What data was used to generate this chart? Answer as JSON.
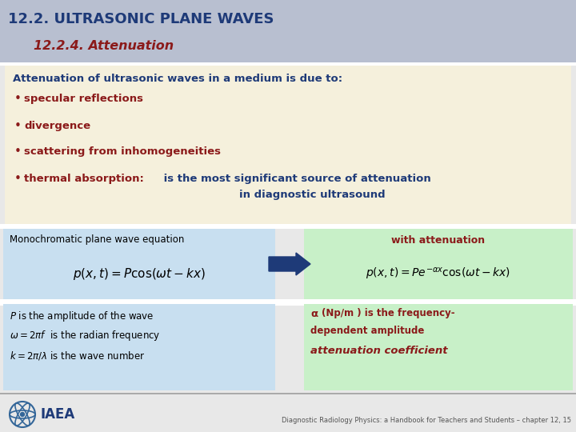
{
  "title1": "12.2. ULTRASONIC PLANE WAVES",
  "title1_color": "#1e3a78",
  "title2": "12.2.4. Attenuation",
  "title2_color": "#8b1a1a",
  "header_bg": "#b8bfd0",
  "bullet_box_bg": "#f5f0dc",
  "bullet_header": "Attenuation of ultrasonic waves in a medium is due to:",
  "bullet_header_color": "#1e3a78",
  "bullets_red": [
    "specular reflections",
    "divergence",
    "scattering from inhomogeneities",
    "thermal absorption:"
  ],
  "bullet4_blue": " is the most significant source of attenuation",
  "bullet4_blue2": "in diagnostic ultrasound",
  "bullet_color": "#8b1a1a",
  "bullet4_rest_color": "#1e3a78",
  "left_box_bg": "#c8dff0",
  "right_box_bg": "#c8f0c8",
  "left_label": "Monochromatic plane wave equation",
  "left_label_color": "#000000",
  "right_label": "with attenuation",
  "right_label_color": "#8b1a1a",
  "left_desc_color": "#000000",
  "right_desc1a": "α",
  "right_desc1b": " (Np/m ) is the frequency-\ndependent amplitude",
  "right_desc1_color": "#8b1a1a",
  "right_desc2": "attenuation coefficient",
  "right_desc2_color": "#8b1a1a",
  "arrow_color": "#1e3a78",
  "footer_text": "Diagnostic Radiology Physics: a Handbook for Teachers and Students – chapter 12, 15",
  "footer_color": "#555555",
  "iaea_text": "IAEA",
  "iaea_color": "#1e3a78",
  "bg_color": "#e8e8e8",
  "separator_color": "#ffffff"
}
